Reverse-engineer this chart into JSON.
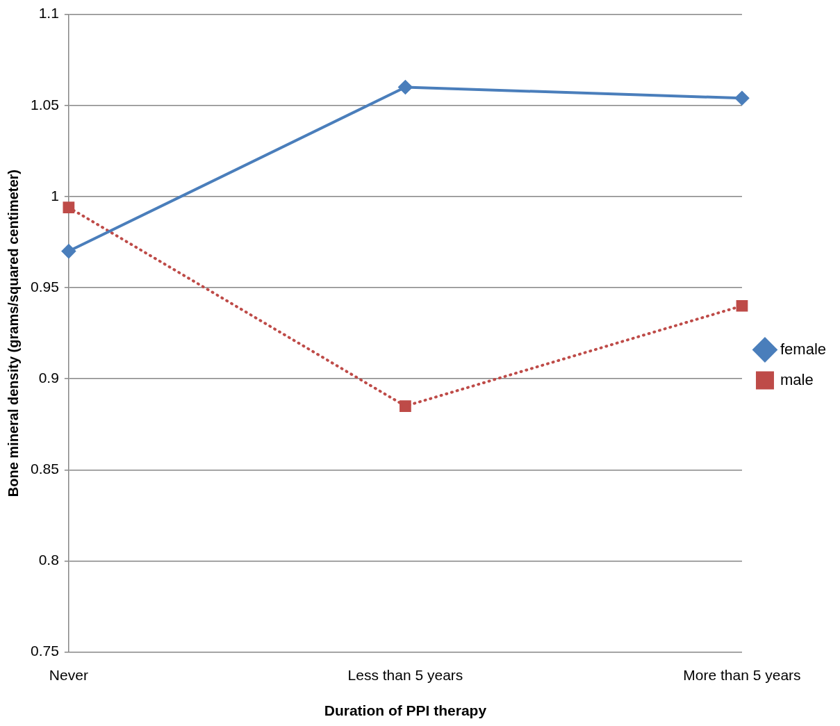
{
  "chart_data": {
    "type": "line",
    "xlabel": "Duration of PPI therapy",
    "ylabel": "Bone mineral density (grams/squared centimeter)",
    "categories": [
      "Never",
      "Less than 5 years",
      "More than 5 years"
    ],
    "series": [
      {
        "name": "female",
        "color": "#4a7ebb",
        "values": [
          0.97,
          1.06,
          1.054
        ],
        "marker": "diamond",
        "line_style": "solid"
      },
      {
        "name": "male",
        "color": "#be4b48",
        "values": [
          0.994,
          0.885,
          0.94
        ],
        "marker": "square",
        "line_style": "dotted"
      }
    ],
    "ylim": [
      0.75,
      1.1
    ],
    "yticks": [
      0.75,
      0.8,
      0.85,
      0.9,
      0.95,
      1,
      1.05,
      1.1
    ],
    "grid": "y",
    "legend": "right"
  }
}
